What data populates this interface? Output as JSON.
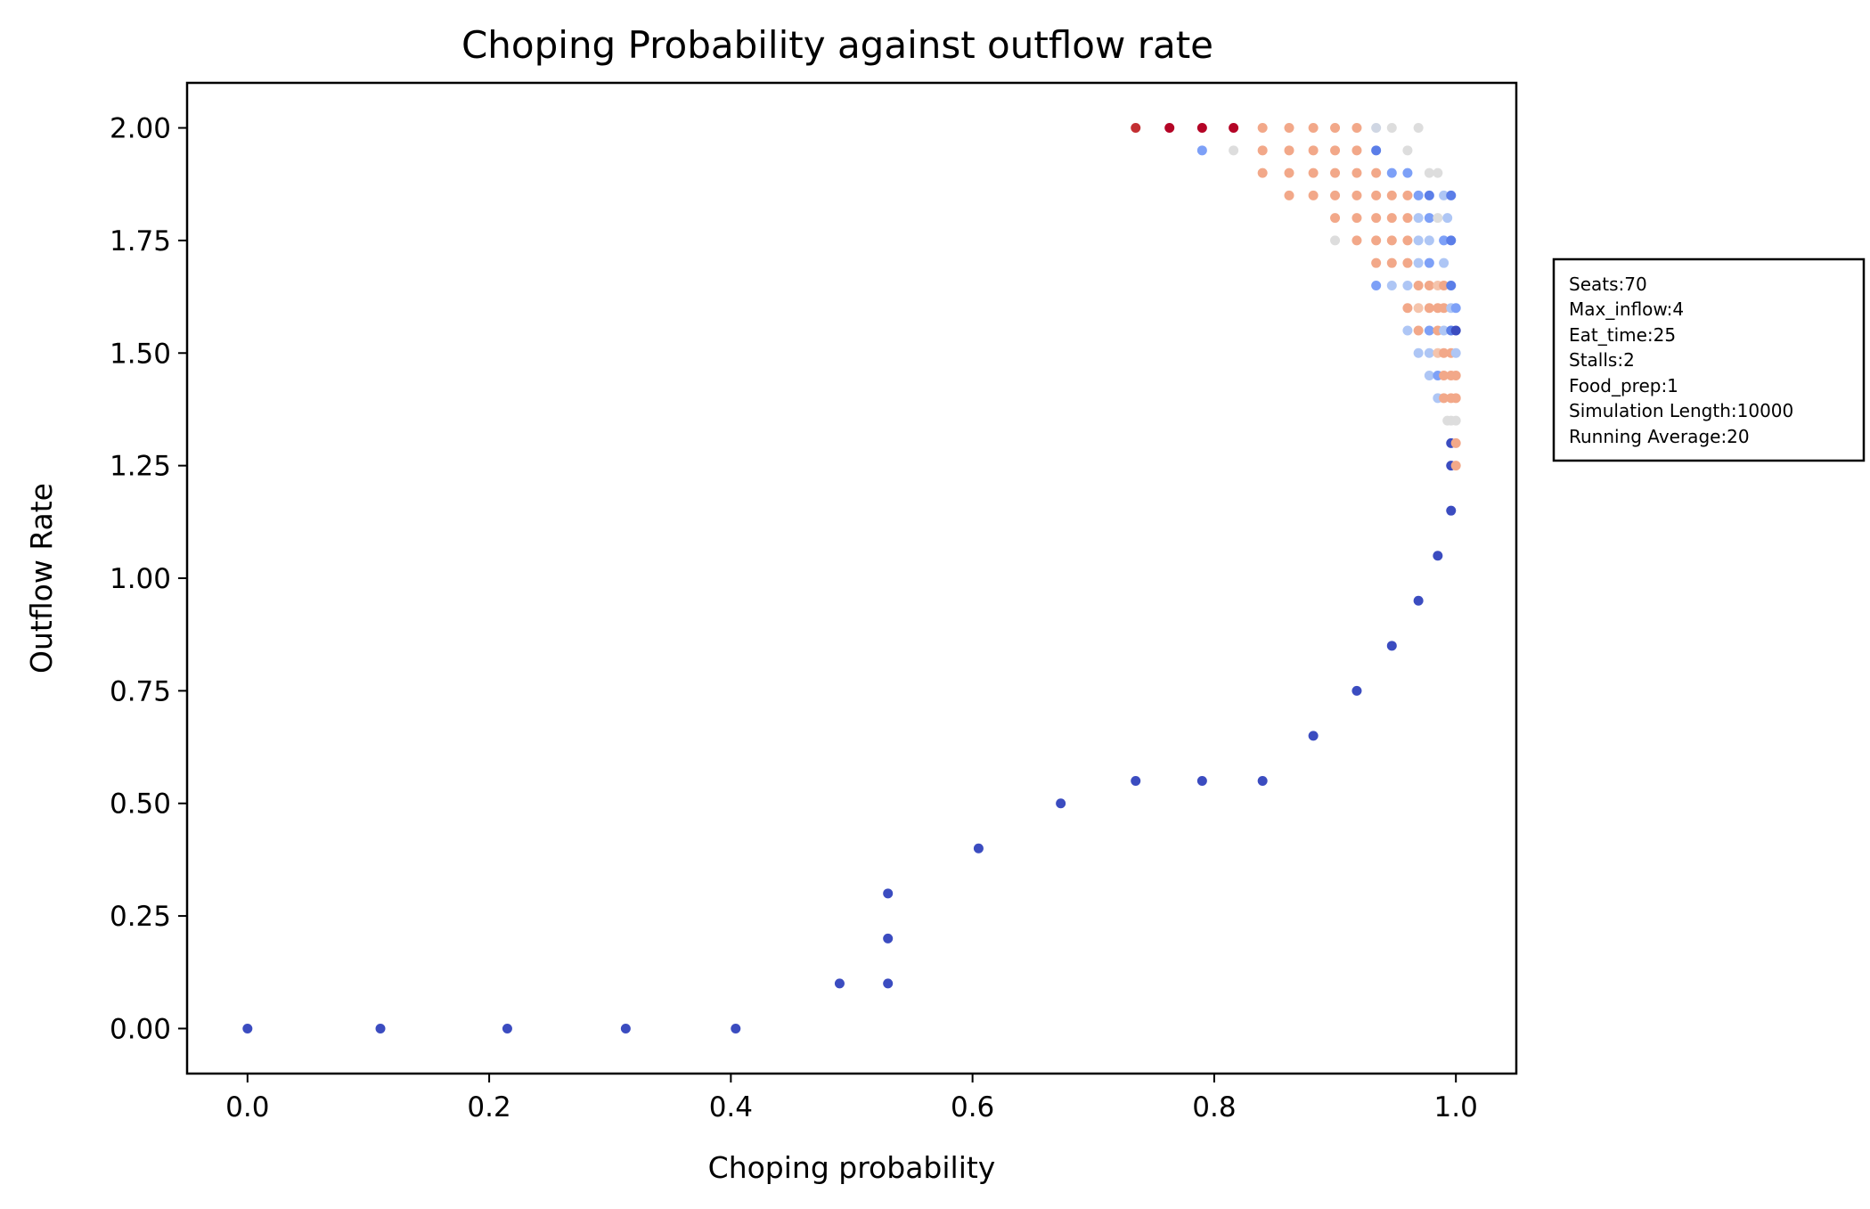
{
  "chart_data": {
    "type": "scatter",
    "title": "Choping Probability against outflow rate",
    "xlabel": "Choping probability",
    "ylabel": "Outflow Rate",
    "xlim": [
      -0.05,
      1.05
    ],
    "ylim": [
      -0.1,
      2.1
    ],
    "xticks": [
      0.0,
      0.2,
      0.4,
      0.6,
      0.8,
      1.0
    ],
    "xtick_labels": [
      "0.0",
      "0.2",
      "0.4",
      "0.6",
      "0.8",
      "1.0"
    ],
    "yticks": [
      0.0,
      0.25,
      0.5,
      0.75,
      1.0,
      1.25,
      1.5,
      1.75,
      2.0
    ],
    "ytick_labels": [
      "0.00",
      "0.25",
      "0.50",
      "0.75",
      "1.00",
      "1.25",
      "1.50",
      "1.75",
      "2.00"
    ],
    "grid": false,
    "colormap": "coolwarm",
    "points": [
      {
        "x": 0.0,
        "y": 0.0,
        "c": "#3b4cc0"
      },
      {
        "x": 0.11,
        "y": 0.0,
        "c": "#3b4cc0"
      },
      {
        "x": 0.215,
        "y": 0.0,
        "c": "#3b4cc0"
      },
      {
        "x": 0.313,
        "y": 0.0,
        "c": "#3b4cc0"
      },
      {
        "x": 0.404,
        "y": 0.0,
        "c": "#3b4cc0"
      },
      {
        "x": 0.49,
        "y": 0.1,
        "c": "#3b4cc0"
      },
      {
        "x": 0.53,
        "y": 0.1,
        "c": "#3b4cc0"
      },
      {
        "x": 0.53,
        "y": 0.2,
        "c": "#3b4cc0"
      },
      {
        "x": 0.53,
        "y": 0.3,
        "c": "#3b4cc0"
      },
      {
        "x": 0.605,
        "y": 0.4,
        "c": "#3b4cc0"
      },
      {
        "x": 0.673,
        "y": 0.5,
        "c": "#3b4cc0"
      },
      {
        "x": 0.735,
        "y": 0.55,
        "c": "#3b4cc0"
      },
      {
        "x": 0.79,
        "y": 0.55,
        "c": "#3b4cc0"
      },
      {
        "x": 0.84,
        "y": 0.55,
        "c": "#3b4cc0"
      },
      {
        "x": 0.882,
        "y": 0.65,
        "c": "#3b4cc0"
      },
      {
        "x": 0.918,
        "y": 0.75,
        "c": "#3b4cc0"
      },
      {
        "x": 0.947,
        "y": 0.85,
        "c": "#3b4cc0"
      },
      {
        "x": 0.969,
        "y": 0.95,
        "c": "#3b4cc0"
      },
      {
        "x": 0.985,
        "y": 1.05,
        "c": "#3b4cc0"
      },
      {
        "x": 0.996,
        "y": 1.15,
        "c": "#3b4cc0"
      },
      {
        "x": 0.735,
        "y": 2.0,
        "c": "#c32f32"
      },
      {
        "x": 0.763,
        "y": 2.0,
        "c": "#b40426"
      },
      {
        "x": 0.79,
        "y": 2.0,
        "c": "#b40426"
      },
      {
        "x": 0.816,
        "y": 2.0,
        "c": "#b40426"
      },
      {
        "x": 0.84,
        "y": 2.0,
        "c": "#f2a889"
      },
      {
        "x": 0.862,
        "y": 2.0,
        "c": "#f2a889"
      },
      {
        "x": 0.882,
        "y": 2.0,
        "c": "#f2a889"
      },
      {
        "x": 0.9,
        "y": 2.0,
        "c": "#f2a889"
      },
      {
        "x": 0.918,
        "y": 2.0,
        "c": "#f2a889"
      },
      {
        "x": 0.934,
        "y": 2.0,
        "c": "#cfd6e3"
      },
      {
        "x": 0.947,
        "y": 2.0,
        "c": "#dddddd"
      },
      {
        "x": 0.969,
        "y": 2.0,
        "c": "#dddddd"
      },
      {
        "x": 0.79,
        "y": 1.95,
        "c": "#7da0f7"
      },
      {
        "x": 0.816,
        "y": 1.95,
        "c": "#dddddd"
      },
      {
        "x": 0.84,
        "y": 1.95,
        "c": "#f2a889"
      },
      {
        "x": 0.862,
        "y": 1.95,
        "c": "#f2a889"
      },
      {
        "x": 0.882,
        "y": 1.95,
        "c": "#f2a889"
      },
      {
        "x": 0.9,
        "y": 1.95,
        "c": "#f2a889"
      },
      {
        "x": 0.918,
        "y": 1.95,
        "c": "#f2a889"
      },
      {
        "x": 0.934,
        "y": 1.95,
        "c": "#5b7ee8"
      },
      {
        "x": 0.96,
        "y": 1.95,
        "c": "#dddddd"
      },
      {
        "x": 0.84,
        "y": 1.9,
        "c": "#f2a889"
      },
      {
        "x": 0.862,
        "y": 1.9,
        "c": "#f2a889"
      },
      {
        "x": 0.882,
        "y": 1.9,
        "c": "#f2a889"
      },
      {
        "x": 0.9,
        "y": 1.9,
        "c": "#f2a889"
      },
      {
        "x": 0.918,
        "y": 1.9,
        "c": "#f2a889"
      },
      {
        "x": 0.934,
        "y": 1.9,
        "c": "#f2a889"
      },
      {
        "x": 0.947,
        "y": 1.9,
        "c": "#7da0f7"
      },
      {
        "x": 0.96,
        "y": 1.9,
        "c": "#7da0f7"
      },
      {
        "x": 0.978,
        "y": 1.9,
        "c": "#dddddd"
      },
      {
        "x": 0.985,
        "y": 1.9,
        "c": "#dddddd"
      },
      {
        "x": 0.862,
        "y": 1.85,
        "c": "#f2a889"
      },
      {
        "x": 0.882,
        "y": 1.85,
        "c": "#f2a889"
      },
      {
        "x": 0.9,
        "y": 1.85,
        "c": "#f2a889"
      },
      {
        "x": 0.918,
        "y": 1.85,
        "c": "#f2a889"
      },
      {
        "x": 0.934,
        "y": 1.85,
        "c": "#f2a889"
      },
      {
        "x": 0.947,
        "y": 1.85,
        "c": "#f2a889"
      },
      {
        "x": 0.96,
        "y": 1.85,
        "c": "#f2a889"
      },
      {
        "x": 0.969,
        "y": 1.85,
        "c": "#7da0f7"
      },
      {
        "x": 0.978,
        "y": 1.85,
        "c": "#5b7ee8"
      },
      {
        "x": 0.99,
        "y": 1.85,
        "c": "#aec6f5"
      },
      {
        "x": 0.996,
        "y": 1.85,
        "c": "#5b7ee8"
      },
      {
        "x": 0.9,
        "y": 1.8,
        "c": "#f2a889"
      },
      {
        "x": 0.918,
        "y": 1.8,
        "c": "#f2a889"
      },
      {
        "x": 0.934,
        "y": 1.8,
        "c": "#f2a889"
      },
      {
        "x": 0.947,
        "y": 1.8,
        "c": "#f2a889"
      },
      {
        "x": 0.96,
        "y": 1.8,
        "c": "#f2a889"
      },
      {
        "x": 0.969,
        "y": 1.8,
        "c": "#aec6f5"
      },
      {
        "x": 0.978,
        "y": 1.8,
        "c": "#7da0f7"
      },
      {
        "x": 0.985,
        "y": 1.8,
        "c": "#dddddd"
      },
      {
        "x": 0.993,
        "y": 1.8,
        "c": "#aec6f5"
      },
      {
        "x": 0.9,
        "y": 1.75,
        "c": "#dddddd"
      },
      {
        "x": 0.918,
        "y": 1.75,
        "c": "#f2a889"
      },
      {
        "x": 0.934,
        "y": 1.75,
        "c": "#f2a889"
      },
      {
        "x": 0.947,
        "y": 1.75,
        "c": "#f2a889"
      },
      {
        "x": 0.96,
        "y": 1.75,
        "c": "#f2a889"
      },
      {
        "x": 0.969,
        "y": 1.75,
        "c": "#aec6f5"
      },
      {
        "x": 0.978,
        "y": 1.75,
        "c": "#aec6f5"
      },
      {
        "x": 0.99,
        "y": 1.75,
        "c": "#7da0f7"
      },
      {
        "x": 0.996,
        "y": 1.75,
        "c": "#5b7ee8"
      },
      {
        "x": 0.934,
        "y": 1.7,
        "c": "#f2a889"
      },
      {
        "x": 0.947,
        "y": 1.7,
        "c": "#f2a889"
      },
      {
        "x": 0.96,
        "y": 1.7,
        "c": "#f2a889"
      },
      {
        "x": 0.969,
        "y": 1.7,
        "c": "#aec6f5"
      },
      {
        "x": 0.978,
        "y": 1.7,
        "c": "#7da0f7"
      },
      {
        "x": 0.99,
        "y": 1.7,
        "c": "#aec6f5"
      },
      {
        "x": 0.934,
        "y": 1.65,
        "c": "#7da0f7"
      },
      {
        "x": 0.947,
        "y": 1.65,
        "c": "#aec6f5"
      },
      {
        "x": 0.96,
        "y": 1.65,
        "c": "#aec6f5"
      },
      {
        "x": 0.969,
        "y": 1.65,
        "c": "#f2a889"
      },
      {
        "x": 0.978,
        "y": 1.65,
        "c": "#f2a889"
      },
      {
        "x": 0.985,
        "y": 1.65,
        "c": "#f5c4ac"
      },
      {
        "x": 0.99,
        "y": 1.65,
        "c": "#f2a889"
      },
      {
        "x": 0.996,
        "y": 1.65,
        "c": "#5b7ee8"
      },
      {
        "x": 0.96,
        "y": 1.6,
        "c": "#f2a889"
      },
      {
        "x": 0.969,
        "y": 1.6,
        "c": "#f5c4ac"
      },
      {
        "x": 0.978,
        "y": 1.6,
        "c": "#f2a889"
      },
      {
        "x": 0.985,
        "y": 1.6,
        "c": "#f2a889"
      },
      {
        "x": 0.99,
        "y": 1.6,
        "c": "#f2a889"
      },
      {
        "x": 0.996,
        "y": 1.6,
        "c": "#aec6f5"
      },
      {
        "x": 1.0,
        "y": 1.6,
        "c": "#7da0f7"
      },
      {
        "x": 0.96,
        "y": 1.55,
        "c": "#aec6f5"
      },
      {
        "x": 0.969,
        "y": 1.55,
        "c": "#f2a889"
      },
      {
        "x": 0.978,
        "y": 1.55,
        "c": "#7da0f7"
      },
      {
        "x": 0.985,
        "y": 1.55,
        "c": "#f2a889"
      },
      {
        "x": 0.99,
        "y": 1.55,
        "c": "#aec6f5"
      },
      {
        "x": 0.996,
        "y": 1.55,
        "c": "#5b7ee8"
      },
      {
        "x": 1.0,
        "y": 1.55,
        "c": "#3b4cc0"
      },
      {
        "x": 0.969,
        "y": 1.5,
        "c": "#aec6f5"
      },
      {
        "x": 0.978,
        "y": 1.5,
        "c": "#aec6f5"
      },
      {
        "x": 0.985,
        "y": 1.5,
        "c": "#f5c4ac"
      },
      {
        "x": 0.99,
        "y": 1.5,
        "c": "#f2a889"
      },
      {
        "x": 0.996,
        "y": 1.5,
        "c": "#f2a889"
      },
      {
        "x": 1.0,
        "y": 1.5,
        "c": "#aec6f5"
      },
      {
        "x": 0.978,
        "y": 1.45,
        "c": "#aec6f5"
      },
      {
        "x": 0.985,
        "y": 1.45,
        "c": "#7da0f7"
      },
      {
        "x": 0.99,
        "y": 1.45,
        "c": "#f2a889"
      },
      {
        "x": 0.996,
        "y": 1.45,
        "c": "#f2a889"
      },
      {
        "x": 1.0,
        "y": 1.45,
        "c": "#f2a889"
      },
      {
        "x": 0.985,
        "y": 1.4,
        "c": "#aec6f5"
      },
      {
        "x": 0.99,
        "y": 1.4,
        "c": "#f2a889"
      },
      {
        "x": 0.996,
        "y": 1.4,
        "c": "#f2a889"
      },
      {
        "x": 1.0,
        "y": 1.4,
        "c": "#f2a889"
      },
      {
        "x": 0.993,
        "y": 1.35,
        "c": "#dddddd"
      },
      {
        "x": 0.996,
        "y": 1.35,
        "c": "#dddddd"
      },
      {
        "x": 1.0,
        "y": 1.35,
        "c": "#dddddd"
      },
      {
        "x": 0.996,
        "y": 1.3,
        "c": "#3b4cc0"
      },
      {
        "x": 1.0,
        "y": 1.3,
        "c": "#f2a889"
      },
      {
        "x": 0.996,
        "y": 1.25,
        "c": "#3b4cc0"
      },
      {
        "x": 1.0,
        "y": 1.25,
        "c": "#f2a889"
      }
    ]
  },
  "info_box": {
    "lines": [
      "Seats:70",
      "Max_inflow:4",
      "Eat_time:25",
      "Stalls:2",
      "Food_prep:1",
      "Simulation Length:10000",
      "Running Average:20"
    ]
  }
}
